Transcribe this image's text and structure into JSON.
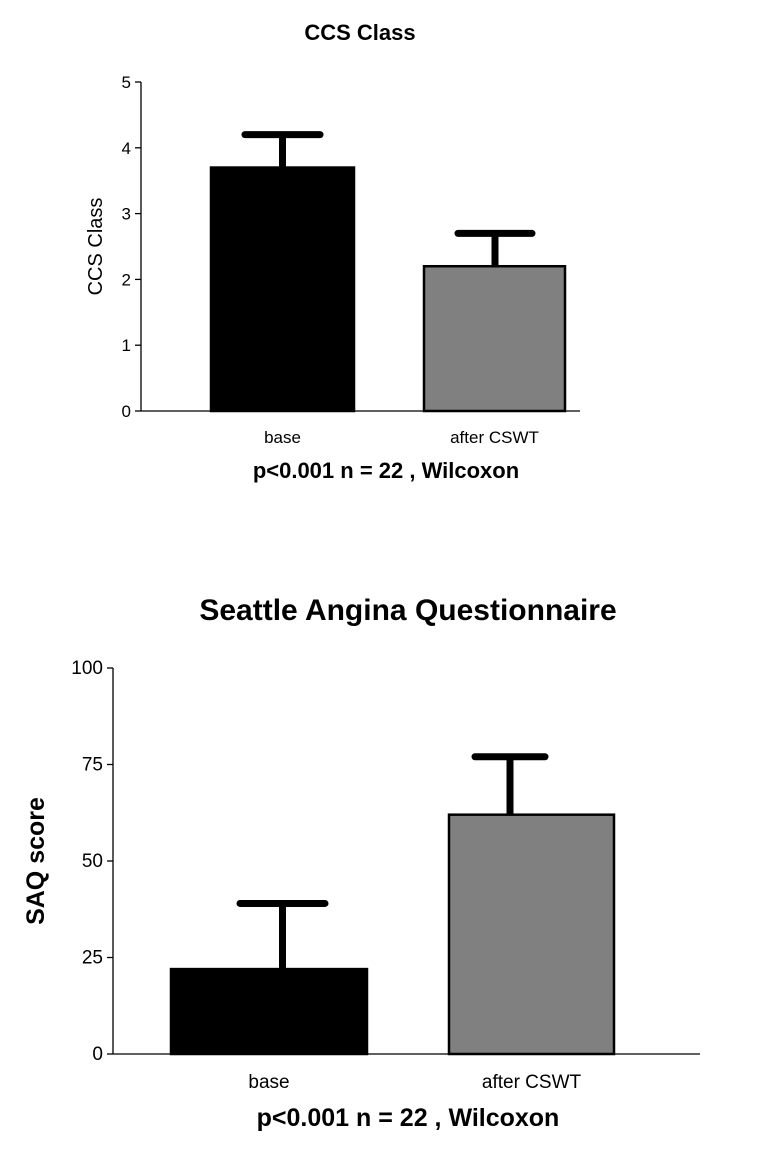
{
  "chart_data": [
    {
      "type": "bar",
      "title": "CCS Class",
      "xlabel": "",
      "ylabel": "CCS Class",
      "footnote": "p<0.001 n = 22 , Wilcoxon",
      "categories": [
        "base",
        "after CSWT"
      ],
      "values": [
        3.7,
        2.2
      ],
      "error_upper": [
        4.2,
        2.7
      ],
      "colors": [
        "#000000",
        "#808080"
      ],
      "ylim": [
        0,
        5
      ],
      "yticks": [
        "0",
        "1",
        "2",
        "3",
        "4",
        "5"
      ],
      "grid": false
    },
    {
      "type": "bar",
      "title": "Seattle Angina Questionnaire",
      "xlabel": "",
      "ylabel": "SAQ score",
      "footnote": "p<0.001 n = 22 , Wilcoxon",
      "categories": [
        "base",
        "after CSWT"
      ],
      "values": [
        22,
        62
      ],
      "error_upper": [
        39,
        77
      ],
      "colors": [
        "#000000",
        "#808080"
      ],
      "ylim": [
        0,
        100
      ],
      "yticks": [
        "0",
        "25",
        "50",
        "75",
        "100"
      ],
      "grid": false
    }
  ]
}
